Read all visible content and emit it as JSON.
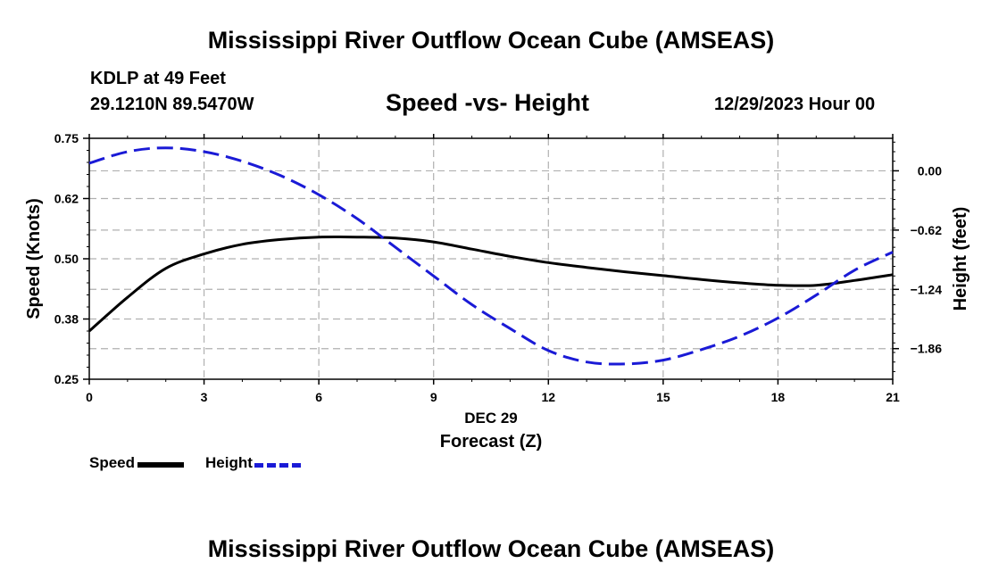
{
  "header": {
    "title": "Mississippi River Outflow Ocean Cube (AMSEAS)",
    "station": "KDLP at 49 Feet",
    "latlon": "29.1210N  89.5470W",
    "subtitle": "Speed -vs- Height",
    "date": "12/29/2023 Hour 00"
  },
  "footer": {
    "title": "Mississippi River Outflow Ocean Cube (AMSEAS)"
  },
  "legend": {
    "speed_label": "Speed",
    "height_label": "Height"
  },
  "colors": {
    "speed": "#000000",
    "height": "#1a1ad6",
    "grid": "#b0b0b0"
  },
  "chart_data": {
    "type": "line",
    "title": "Speed -vs- Height",
    "xlabel_day": "DEC 29",
    "xlabel": "Forecast (Z)",
    "ylabel": "Speed (Knots)",
    "y2label": "Height (feet)",
    "xlim": [
      0,
      21
    ],
    "x_ticks": [
      0,
      3,
      6,
      9,
      12,
      15,
      18,
      21
    ],
    "x_tick_labels": [
      "0",
      "3",
      "6",
      "9",
      "12",
      "15",
      "18",
      "21"
    ],
    "ylim": [
      0.25,
      0.75
    ],
    "y_ticks": [
      0.25,
      0.375,
      0.5,
      0.625,
      0.75
    ],
    "y_tick_labels": [
      "0.25",
      "0.38",
      "0.50",
      "0.62",
      "0.75"
    ],
    "y2lim": [
      -2.18,
      0.34
    ],
    "y2_ticks": [
      0.0,
      -0.62,
      -1.24,
      -1.86
    ],
    "y2_tick_labels": [
      "0.00",
      "−0.62",
      "−1.24",
      "−1.86"
    ],
    "grid": true,
    "series": [
      {
        "name": "Speed",
        "axis": "left",
        "style": "solid",
        "x": [
          0,
          1,
          2,
          3,
          4,
          5,
          6,
          7,
          8,
          9,
          10,
          11,
          12,
          13,
          14,
          15,
          16,
          17,
          18,
          19,
          20,
          21
        ],
        "values": [
          0.35,
          0.42,
          0.48,
          0.51,
          0.53,
          0.54,
          0.545,
          0.545,
          0.543,
          0.535,
          0.52,
          0.505,
          0.492,
          0.482,
          0.473,
          0.465,
          0.457,
          0.45,
          0.445,
          0.445,
          0.455,
          0.467
        ]
      },
      {
        "name": "Height",
        "axis": "right",
        "style": "dashed",
        "x": [
          0,
          1,
          2,
          3,
          4,
          5,
          6,
          7,
          8,
          9,
          10,
          11,
          12,
          13,
          14,
          15,
          16,
          17,
          18,
          19,
          20,
          21
        ],
        "values": [
          0.08,
          0.2,
          0.24,
          0.2,
          0.1,
          -0.05,
          -0.25,
          -0.5,
          -0.8,
          -1.1,
          -1.4,
          -1.65,
          -1.88,
          -2.0,
          -2.02,
          -1.98,
          -1.87,
          -1.73,
          -1.54,
          -1.3,
          -1.04,
          -0.85
        ]
      }
    ]
  }
}
